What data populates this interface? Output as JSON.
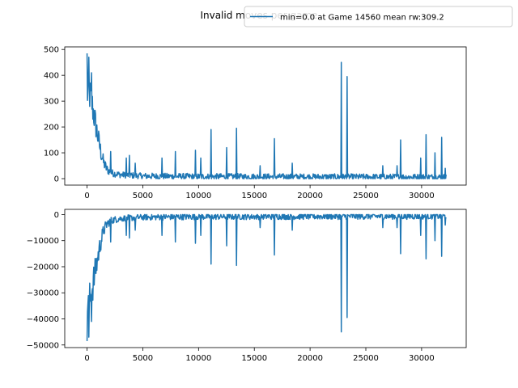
{
  "figure": {
    "title": "Invalid moves per game",
    "legend": {
      "label": "min=0.0 at Game 14560 mean rw:309.2",
      "placement": "upper-right",
      "color": "#1f77b4"
    }
  },
  "chart_data": [
    {
      "type": "line",
      "title": "",
      "xlabel": "",
      "ylabel": "",
      "xlim": [
        -2000,
        34000
      ],
      "ylim": [
        -25,
        510
      ],
      "xticks": [
        0,
        5000,
        10000,
        15000,
        20000,
        25000,
        30000
      ],
      "yticks": [
        0,
        100,
        200,
        300,
        400,
        500
      ],
      "grid": false,
      "series": [
        {
          "name": "min=0.0 at Game 14560 mean rw:309.2",
          "color": "#1f77b4",
          "baseline": [
            [
              0,
              330
            ],
            [
              200,
              330
            ],
            [
              400,
              300
            ],
            [
              600,
              250
            ],
            [
              900,
              180
            ],
            [
              1200,
              110
            ],
            [
              1500,
              60
            ],
            [
              1800,
              35
            ],
            [
              2200,
              22
            ],
            [
              3000,
              15
            ],
            [
              5000,
              10
            ],
            [
              10000,
              8
            ],
            [
              20000,
              7
            ],
            [
              32200,
              6
            ]
          ],
          "noise_band": [
            [
              0,
              70
            ],
            [
              500,
              65
            ],
            [
              1000,
              45
            ],
            [
              1500,
              25
            ],
            [
              2000,
              15
            ],
            [
              3000,
              12
            ],
            [
              32200,
              12
            ]
          ],
          "spikes": [
            [
              0,
              485
            ],
            [
              150,
              470
            ],
            [
              400,
              410
            ],
            [
              2100,
              105
            ],
            [
              3500,
              80
            ],
            [
              3800,
              90
            ],
            [
              4300,
              60
            ],
            [
              6700,
              80
            ],
            [
              7900,
              105
            ],
            [
              9700,
              110
            ],
            [
              10200,
              80
            ],
            [
              11100,
              190
            ],
            [
              12500,
              120
            ],
            [
              13400,
              195
            ],
            [
              15500,
              50
            ],
            [
              16800,
              155
            ],
            [
              18400,
              60
            ],
            [
              22800,
              450
            ],
            [
              23300,
              395
            ],
            [
              26500,
              50
            ],
            [
              27800,
              50
            ],
            [
              28100,
              150
            ],
            [
              29900,
              80
            ],
            [
              30400,
              170
            ],
            [
              31200,
              100
            ],
            [
              31800,
              160
            ],
            [
              32100,
              40
            ]
          ]
        }
      ]
    },
    {
      "type": "line",
      "title": "",
      "xlabel": "",
      "ylabel": "",
      "xlim": [
        -2000,
        34000
      ],
      "ylim": [
        -51000,
        2000
      ],
      "xticks": [
        0,
        5000,
        10000,
        15000,
        20000,
        25000,
        30000
      ],
      "yticks": [
        0,
        -10000,
        -20000,
        -30000,
        -40000,
        -50000
      ],
      "grid": false,
      "series": [
        {
          "name": "",
          "color": "#1f77b4",
          "baseline": [
            [
              0,
              -33000
            ],
            [
              200,
              -33000
            ],
            [
              400,
              -30000
            ],
            [
              600,
              -25000
            ],
            [
              900,
              -18000
            ],
            [
              1200,
              -11000
            ],
            [
              1500,
              -6000
            ],
            [
              1800,
              -3500
            ],
            [
              2200,
              -2200
            ],
            [
              3000,
              -1500
            ],
            [
              5000,
              -1000
            ],
            [
              10000,
              -800
            ],
            [
              20000,
              -700
            ],
            [
              32200,
              -600
            ]
          ],
          "noise_band": [
            [
              0,
              7000
            ],
            [
              500,
              6500
            ],
            [
              1000,
              4500
            ],
            [
              1500,
              2500
            ],
            [
              2000,
              1500
            ],
            [
              3000,
              1200
            ],
            [
              32200,
              1200
            ]
          ],
          "spikes": [
            [
              0,
              -48500
            ],
            [
              150,
              -47000
            ],
            [
              400,
              -41000
            ],
            [
              2100,
              -10500
            ],
            [
              3500,
              -8000
            ],
            [
              3800,
              -9000
            ],
            [
              4300,
              -6000
            ],
            [
              6700,
              -8000
            ],
            [
              7900,
              -10500
            ],
            [
              9700,
              -11000
            ],
            [
              10200,
              -8000
            ],
            [
              11100,
              -19000
            ],
            [
              12500,
              -12000
            ],
            [
              13400,
              -19500
            ],
            [
              15500,
              -5000
            ],
            [
              16800,
              -15500
            ],
            [
              18400,
              -6000
            ],
            [
              22800,
              -45000
            ],
            [
              23300,
              -39500
            ],
            [
              26500,
              -5000
            ],
            [
              27800,
              -5000
            ],
            [
              28100,
              -15000
            ],
            [
              29900,
              -8000
            ],
            [
              30400,
              -17000
            ],
            [
              31200,
              -10000
            ],
            [
              31800,
              -16000
            ],
            [
              32100,
              -4000
            ]
          ]
        }
      ]
    }
  ]
}
